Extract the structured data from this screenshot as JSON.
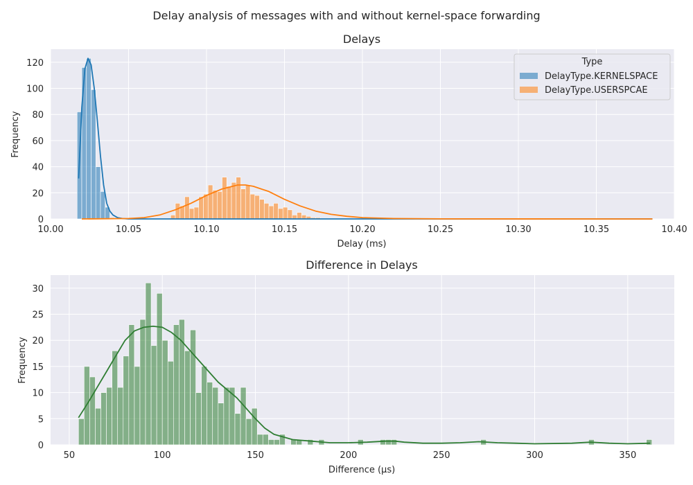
{
  "suptitle": "Delay analysis of messages with and without kernel-space forwarding",
  "chart_data": [
    {
      "type": "histogram",
      "title": "Delays",
      "xlabel": "Delay (ms)",
      "ylabel": "Frequency",
      "xlim": [
        10.0,
        10.4
      ],
      "ylim": [
        0,
        130
      ],
      "xticks": [
        10.0,
        10.05,
        10.1,
        10.15,
        10.2,
        10.25,
        10.3,
        10.35,
        10.4
      ],
      "xtick_labels": [
        "10.00",
        "10.05",
        "10.10",
        "10.15",
        "10.20",
        "10.25",
        "10.30",
        "10.35",
        "10.40"
      ],
      "yticks": [
        0,
        20,
        40,
        60,
        80,
        100,
        120
      ],
      "grid": true,
      "legend": {
        "title": "Type",
        "placement": "top-right"
      },
      "bin_width": 0.003,
      "series": [
        {
          "name": "DelayType.KERNELSPACE",
          "color": "#1f77b4",
          "bins": [
            [
              10.0185,
              82
            ],
            [
              10.0215,
              116
            ],
            [
              10.0245,
              123
            ],
            [
              10.0275,
              99
            ],
            [
              10.0305,
              40
            ],
            [
              10.0335,
              21
            ],
            [
              10.0365,
              9
            ],
            [
              10.0395,
              1
            ]
          ],
          "kde": [
            [
              10.018,
              31
            ],
            [
              10.02,
              85
            ],
            [
              10.022,
              115
            ],
            [
              10.024,
              123
            ],
            [
              10.026,
              118
            ],
            [
              10.028,
              100
            ],
            [
              10.03,
              75
            ],
            [
              10.032,
              48
            ],
            [
              10.034,
              26
            ],
            [
              10.036,
              12
            ],
            [
              10.038,
              6
            ],
            [
              10.04,
              3
            ],
            [
              10.043,
              1
            ],
            [
              10.046,
              0.3
            ],
            [
              10.05,
              0
            ],
            [
              10.1,
              0
            ],
            [
              10.2,
              0
            ],
            [
              10.3,
              0
            ],
            [
              10.386,
              0
            ]
          ]
        },
        {
          "name": "DelayType.USERSPCAE",
          "color": "#ff7f0e",
          "bins": [
            [
              10.0785,
              3
            ],
            [
              10.0815,
              12
            ],
            [
              10.0845,
              10
            ],
            [
              10.0875,
              17
            ],
            [
              10.0905,
              8
            ],
            [
              10.0935,
              9
            ],
            [
              10.0965,
              17
            ],
            [
              10.0995,
              19
            ],
            [
              10.1025,
              26
            ],
            [
              10.1055,
              22
            ],
            [
              10.1085,
              21
            ],
            [
              10.1115,
              32
            ],
            [
              10.1145,
              25
            ],
            [
              10.1175,
              28
            ],
            [
              10.1205,
              32
            ],
            [
              10.1235,
              23
            ],
            [
              10.1265,
              26
            ],
            [
              10.1295,
              19
            ],
            [
              10.1325,
              18
            ],
            [
              10.1355,
              15
            ],
            [
              10.1385,
              12
            ],
            [
              10.1415,
              10
            ],
            [
              10.1445,
              12
            ],
            [
              10.1475,
              8
            ],
            [
              10.1505,
              9
            ],
            [
              10.1535,
              7
            ],
            [
              10.1565,
              3
            ],
            [
              10.1595,
              5
            ],
            [
              10.1625,
              3
            ],
            [
              10.1655,
              2
            ],
            [
              10.1685,
              1
            ],
            [
              10.1715,
              1
            ]
          ],
          "kde": [
            [
              10.02,
              0
            ],
            [
              10.05,
              0.3
            ],
            [
              10.06,
              1
            ],
            [
              10.07,
              3
            ],
            [
              10.08,
              7
            ],
            [
              10.09,
              12
            ],
            [
              10.1,
              18
            ],
            [
              10.11,
              23
            ],
            [
              10.12,
              26
            ],
            [
              10.125,
              26
            ],
            [
              10.13,
              25
            ],
            [
              10.14,
              21
            ],
            [
              10.15,
              15
            ],
            [
              10.16,
              10
            ],
            [
              10.17,
              6
            ],
            [
              10.18,
              3.5
            ],
            [
              10.19,
              2
            ],
            [
              10.2,
              1
            ],
            [
              10.22,
              0.3
            ],
            [
              10.25,
              0.05
            ],
            [
              10.386,
              0
            ]
          ]
        }
      ]
    },
    {
      "type": "histogram",
      "title": "Difference in Delays",
      "xlabel": "Difference (µs)",
      "ylabel": "Frequency",
      "xlim": [
        40,
        375
      ],
      "ylim": [
        0,
        32.5
      ],
      "xticks": [
        50,
        100,
        150,
        200,
        250,
        300,
        350
      ],
      "yticks": [
        0,
        5,
        10,
        15,
        20,
        25,
        30
      ],
      "grid": true,
      "bin_width": 3,
      "series": [
        {
          "color": "#2e7d32",
          "bins": [
            [
              56.5,
              5
            ],
            [
              59.5,
              15
            ],
            [
              62.5,
              13
            ],
            [
              65.5,
              7
            ],
            [
              68.5,
              10
            ],
            [
              71.5,
              11
            ],
            [
              74.5,
              18
            ],
            [
              77.5,
              11
            ],
            [
              80.5,
              17
            ],
            [
              83.5,
              23
            ],
            [
              86.5,
              15
            ],
            [
              89.5,
              24
            ],
            [
              92.5,
              31
            ],
            [
              95.5,
              19
            ],
            [
              98.5,
              29
            ],
            [
              101.5,
              20
            ],
            [
              104.5,
              16
            ],
            [
              107.5,
              23
            ],
            [
              110.5,
              24
            ],
            [
              113.5,
              18
            ],
            [
              116.5,
              22
            ],
            [
              119.5,
              10
            ],
            [
              122.5,
              15
            ],
            [
              125.5,
              12
            ],
            [
              128.5,
              11
            ],
            [
              131.5,
              8
            ],
            [
              134.5,
              11
            ],
            [
              137.5,
              11
            ],
            [
              140.5,
              6
            ],
            [
              143.5,
              11
            ],
            [
              146.5,
              5
            ],
            [
              149.5,
              7
            ],
            [
              152.5,
              2
            ],
            [
              155.5,
              2
            ],
            [
              158.5,
              1
            ],
            [
              161.5,
              1
            ],
            [
              164.5,
              2
            ],
            [
              170.5,
              1
            ],
            [
              173.5,
              1
            ],
            [
              179.5,
              1
            ],
            [
              185.5,
              1
            ],
            [
              206.5,
              1
            ],
            [
              218.5,
              1
            ],
            [
              221.5,
              1
            ],
            [
              224.5,
              1
            ],
            [
              272.5,
              1
            ],
            [
              330.5,
              1
            ],
            [
              361.5,
              1
            ]
          ],
          "kde": [
            [
              55,
              5.2
            ],
            [
              60,
              8
            ],
            [
              65,
              11
            ],
            [
              70,
              14
            ],
            [
              75,
              17
            ],
            [
              80,
              20
            ],
            [
              85,
              21.8
            ],
            [
              90,
              22.5
            ],
            [
              95,
              22.7
            ],
            [
              100,
              22.5
            ],
            [
              105,
              21.5
            ],
            [
              110,
              20
            ],
            [
              115,
              18
            ],
            [
              120,
              16
            ],
            [
              125,
              14
            ],
            [
              130,
              12
            ],
            [
              135,
              10.5
            ],
            [
              140,
              9
            ],
            [
              145,
              7
            ],
            [
              150,
              5
            ],
            [
              155,
              3.2
            ],
            [
              160,
              2
            ],
            [
              170,
              1
            ],
            [
              180,
              0.7
            ],
            [
              190,
              0.4
            ],
            [
              200,
              0.4
            ],
            [
              210,
              0.5
            ],
            [
              220,
              0.7
            ],
            [
              225,
              0.7
            ],
            [
              230,
              0.5
            ],
            [
              240,
              0.3
            ],
            [
              250,
              0.3
            ],
            [
              260,
              0.4
            ],
            [
              270,
              0.6
            ],
            [
              280,
              0.4
            ],
            [
              290,
              0.3
            ],
            [
              300,
              0.2
            ],
            [
              320,
              0.3
            ],
            [
              330,
              0.5
            ],
            [
              340,
              0.3
            ],
            [
              350,
              0.2
            ],
            [
              362,
              0.3
            ]
          ]
        }
      ]
    }
  ]
}
